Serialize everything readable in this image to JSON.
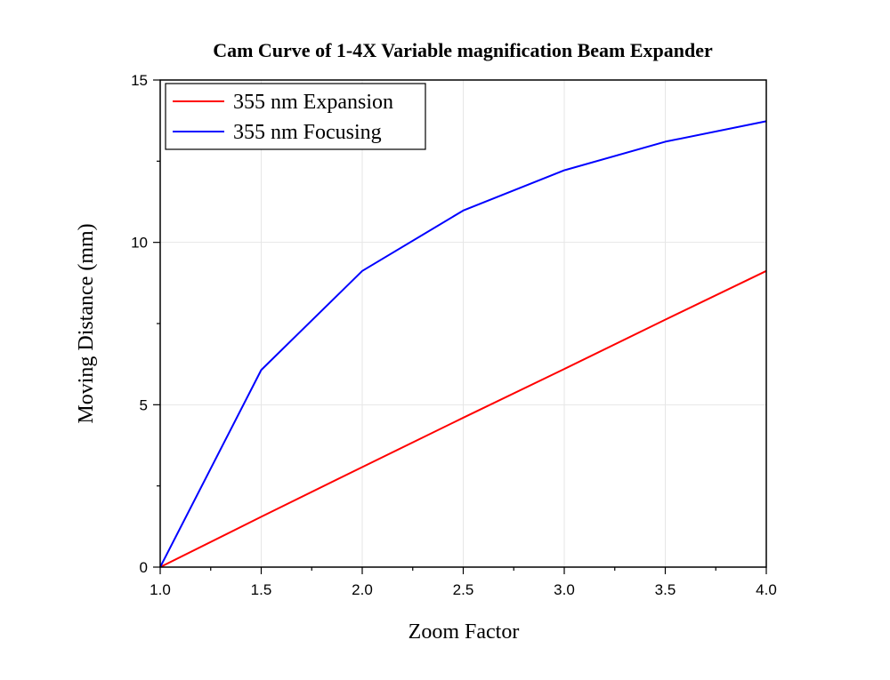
{
  "chart_data": {
    "type": "line",
    "title": "Cam Curve of 1-4X Variable magnification Beam Expander",
    "xlabel": "Zoom Factor",
    "ylabel": "Moving Distance (mm)",
    "xlim": [
      1.0,
      4.0
    ],
    "ylim": [
      0,
      15
    ],
    "xticks": [
      1.0,
      1.5,
      2.0,
      2.5,
      3.0,
      3.5,
      4.0
    ],
    "xtick_labels": [
      "1.0",
      "1.5",
      "2.0",
      "2.5",
      "3.0",
      "3.5",
      "4.0"
    ],
    "yticks": [
      0,
      5,
      10,
      15
    ],
    "ytick_labels": [
      "0",
      "5",
      "10",
      "15"
    ],
    "grid": true,
    "legend_position": "top-left",
    "series": [
      {
        "name": "355 nm Expansion",
        "color": "#ff0000",
        "x": [
          1.0,
          1.5,
          2.0,
          2.5,
          3.0,
          3.5,
          4.0
        ],
        "y": [
          0,
          1.55,
          3.08,
          4.6,
          6.1,
          7.62,
          9.12
        ]
      },
      {
        "name": "355 nm Focusing",
        "color": "#0000ff",
        "x": [
          1.0,
          1.5,
          2.0,
          2.5,
          3.0,
          3.5,
          4.0
        ],
        "y": [
          0,
          6.07,
          9.12,
          10.98,
          12.22,
          13.1,
          13.73
        ]
      }
    ]
  }
}
